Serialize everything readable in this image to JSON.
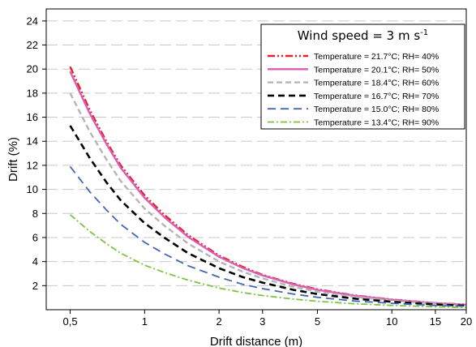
{
  "chart_data": {
    "type": "line",
    "title": "",
    "xlabel": "Drift distance (m)",
    "ylabel": "Drift (%)",
    "xscale": "log",
    "xlim": [
      0.4,
      20
    ],
    "ylim": [
      0,
      25
    ],
    "xticks": [
      {
        "value": 0.5,
        "label": "0,5"
      },
      {
        "value": 1,
        "label": "1"
      },
      {
        "value": 2,
        "label": "2"
      },
      {
        "value": 3,
        "label": "3"
      },
      {
        "value": 5,
        "label": "5"
      },
      {
        "value": 10,
        "label": "10"
      },
      {
        "value": 15,
        "label": "15"
      },
      {
        "value": 20,
        "label": "20"
      }
    ],
    "yticks": [
      2,
      4,
      6,
      8,
      10,
      12,
      14,
      16,
      18,
      20,
      22,
      24
    ],
    "grid": "horizontal dashed",
    "legend": {
      "title_main": "Wind speed = 3 m s",
      "title_sup": "-1",
      "placement": "top-right"
    },
    "x": [
      0.5,
      0.6,
      0.7,
      0.8,
      1,
      1.2,
      1.5,
      2,
      2.5,
      3,
      4,
      5,
      7,
      10,
      15,
      20
    ],
    "series": [
      {
        "name": "Temperature = 21.7°C; RH= 40%",
        "color": "#e8202a",
        "dash": "9,3,2,3,2,3",
        "width": 2.4,
        "values": [
          20.2,
          16.6,
          14.0,
          12.0,
          9.5,
          7.9,
          6.2,
          4.5,
          3.55,
          2.9,
          2.15,
          1.7,
          1.2,
          0.85,
          0.55,
          0.43
        ]
      },
      {
        "name": "Temperature = 20.1°C; RH= 50%",
        "color": "#d75fb5",
        "dash": "",
        "width": 2.4,
        "values": [
          19.8,
          16.3,
          13.8,
          11.8,
          9.3,
          7.7,
          6.05,
          4.4,
          3.45,
          2.85,
          2.1,
          1.65,
          1.17,
          0.83,
          0.54,
          0.42
        ]
      },
      {
        "name": "Temperature = 18.4°C; RH= 60%",
        "color": "#b5b5b5",
        "dash": "7,4",
        "width": 2.4,
        "values": [
          18.0,
          14.8,
          12.5,
          10.7,
          8.4,
          7.0,
          5.5,
          4.0,
          3.15,
          2.6,
          1.9,
          1.5,
          1.07,
          0.76,
          0.5,
          0.39
        ]
      },
      {
        "name": "Temperature = 16.7°C; RH= 70%",
        "color": "#000000",
        "dash": "8,5",
        "width": 2.6,
        "values": [
          15.3,
          12.6,
          10.6,
          9.1,
          7.2,
          6.0,
          4.7,
          3.45,
          2.7,
          2.25,
          1.65,
          1.3,
          0.93,
          0.66,
          0.44,
          0.34
        ]
      },
      {
        "name": "Temperature = 15.0°C; RH= 80%",
        "color": "#4466b0",
        "dash": "10,6",
        "width": 1.8,
        "values": [
          11.9,
          9.8,
          8.3,
          7.1,
          5.6,
          4.65,
          3.65,
          2.7,
          2.1,
          1.75,
          1.3,
          1.03,
          0.73,
          0.53,
          0.35,
          0.28
        ]
      },
      {
        "name": "Temperature = 13.4°C; RH= 90%",
        "color": "#7dc242",
        "dash": "8,3,2,3",
        "width": 1.8,
        "values": [
          7.9,
          6.5,
          5.5,
          4.7,
          3.7,
          3.1,
          2.45,
          1.8,
          1.42,
          1.18,
          0.88,
          0.7,
          0.5,
          0.36,
          0.24,
          0.19
        ]
      }
    ]
  }
}
